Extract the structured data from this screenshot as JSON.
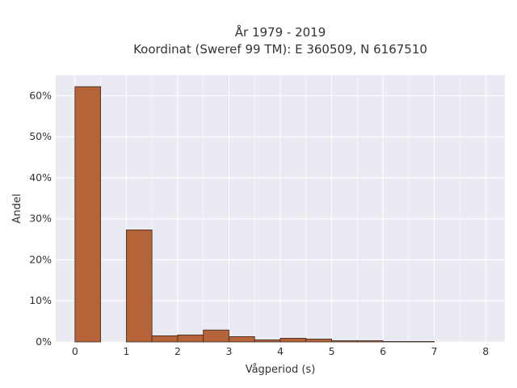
{
  "chart_data": {
    "type": "bar",
    "title_line1": "År 1979 - 2019",
    "title_line2": "Koordinat (Sweref 99 TM): E 360509, N 6167510",
    "xlabel": "Vågperiod (s)",
    "ylabel": "Andel",
    "xlim": [
      -0.375,
      8.375
    ],
    "ylim": [
      0,
      65
    ],
    "x_ticks": [
      0,
      1,
      2,
      3,
      4,
      5,
      6,
      7,
      8
    ],
    "y_ticks": [
      0,
      10,
      20,
      30,
      40,
      50,
      60
    ],
    "y_tick_suffix": "%",
    "bin_width": 0.5,
    "bins": [
      {
        "start": 0.0,
        "value": 62.2
      },
      {
        "start": 0.5,
        "value": 0.0
      },
      {
        "start": 1.0,
        "value": 27.3
      },
      {
        "start": 1.5,
        "value": 1.5
      },
      {
        "start": 2.0,
        "value": 1.7
      },
      {
        "start": 2.5,
        "value": 2.9
      },
      {
        "start": 3.0,
        "value": 1.3
      },
      {
        "start": 3.5,
        "value": 0.5
      },
      {
        "start": 4.0,
        "value": 0.9
      },
      {
        "start": 4.5,
        "value": 0.7
      },
      {
        "start": 5.0,
        "value": 0.3
      },
      {
        "start": 5.5,
        "value": 0.3
      },
      {
        "start": 6.0,
        "value": 0.1
      },
      {
        "start": 6.5,
        "value": 0.1
      }
    ],
    "grid": true,
    "legend": "none",
    "colors": {
      "bar_fill": "#b5643a",
      "bar_stroke": "#3a2a22",
      "plot_bg": "#eaeaf2",
      "grid": "#ffffff"
    }
  }
}
